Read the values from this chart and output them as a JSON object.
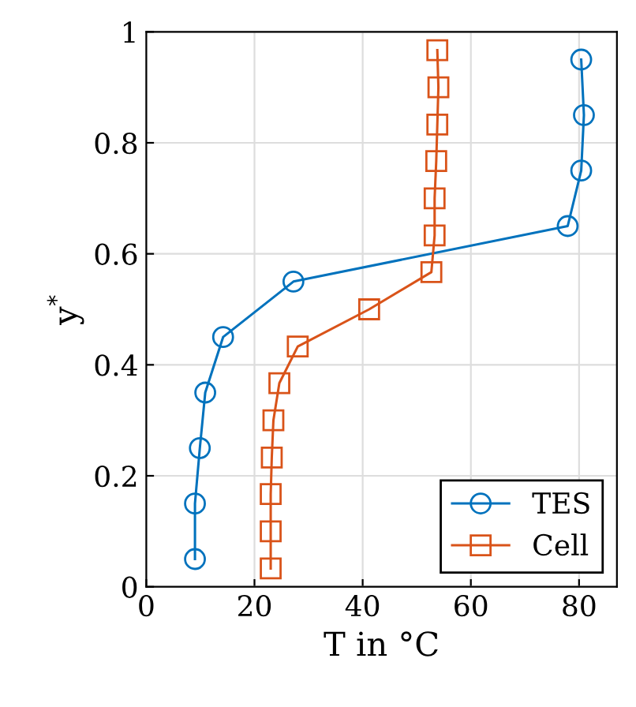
{
  "chart_data": {
    "type": "line",
    "xlabel": "T in °C",
    "ylabel": "y$^{*}$",
    "xlim": [
      0,
      87
    ],
    "ylim": [
      0,
      1
    ],
    "xticks": [
      0,
      20,
      40,
      60,
      80
    ],
    "yticks": [
      0,
      0.2,
      0.4,
      0.6,
      0.8,
      1
    ],
    "grid": true,
    "legend": "bottom right",
    "line_style": "solid",
    "series": [
      {
        "name": "TES",
        "color": "#0072bd",
        "marker": "circle",
        "x": [
          9.0,
          9.0,
          9.9,
          10.9,
          14.2,
          27.2,
          77.9,
          80.4,
          80.9,
          80.4
        ],
        "values": [
          0.05,
          0.15,
          0.25,
          0.35,
          0.45,
          0.55,
          0.65,
          0.75,
          0.85,
          0.95
        ]
      },
      {
        "name": "Cell",
        "color": "#d95319",
        "marker": "square",
        "x": [
          23.0,
          23.0,
          23.0,
          23.2,
          23.5,
          24.6,
          28.0,
          41.2,
          52.7,
          53.3,
          53.3,
          53.6,
          53.8,
          54.0,
          53.8
        ],
        "values": [
          0.033,
          0.1,
          0.167,
          0.233,
          0.3,
          0.367,
          0.433,
          0.5,
          0.567,
          0.633,
          0.7,
          0.767,
          0.833,
          0.9,
          0.967
        ]
      }
    ]
  }
}
